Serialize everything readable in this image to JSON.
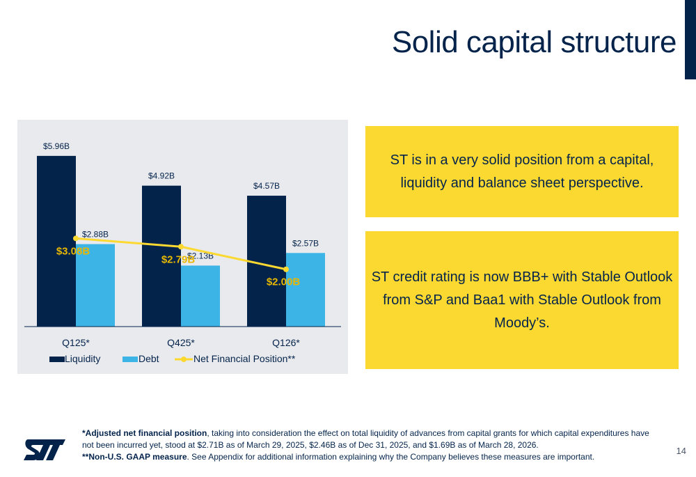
{
  "title": "Solid capital structure",
  "box1_text": "ST is in a very solid position from a capital, liquidity and balance sheet perspective.",
  "box2_text": "ST credit rating is now BBB+ with Stable Outlook from S&P and Baa1 with Stable Outlook from Moody’s.",
  "footnote": {
    "line1_bold": "*Adjusted net financial position",
    "line1_rest": ", taking into consideration the effect on total liquidity of advances from capital grants for which capital expenditures have not been incurred yet, stood at $2.71B as of March 29, 2025, $2.46B as of Dec 31, 2025, and $1.69B as of March 28, 2026.",
    "line2_bold": "**Non-U.S. GAAP measure",
    "line2_rest": ". See Appendix for additional information explaining why the Company believes these measures are important."
  },
  "page_number": "14",
  "logo_alt": "ST logo",
  "colors": {
    "liquidity": "#03234b",
    "debt": "#3cb4e6",
    "net": "#fcd931",
    "panel": "#e9eaed",
    "box": "#fcd931"
  },
  "chart_data": {
    "type": "bar",
    "categories": [
      "Q125*",
      "Q425*",
      "Q126*"
    ],
    "series": [
      {
        "name": "Liquidity",
        "type": "bar",
        "values": [
          5.96,
          4.92,
          4.57
        ],
        "labels": [
          "$5.96B",
          "$4.92B",
          "$4.57B"
        ]
      },
      {
        "name": "Debt",
        "type": "bar",
        "values": [
          2.88,
          2.13,
          2.57
        ],
        "labels": [
          "$2.88B",
          "$2.13B",
          "$2.57B"
        ]
      },
      {
        "name": "Net Financial Position**",
        "type": "line",
        "values": [
          3.08,
          2.79,
          2.0
        ],
        "labels": [
          "$3.08B",
          "$2.79B",
          "$2.00B"
        ]
      }
    ],
    "ylim": [
      0,
      6.2
    ],
    "grid": false,
    "legend": "bottom-left"
  }
}
